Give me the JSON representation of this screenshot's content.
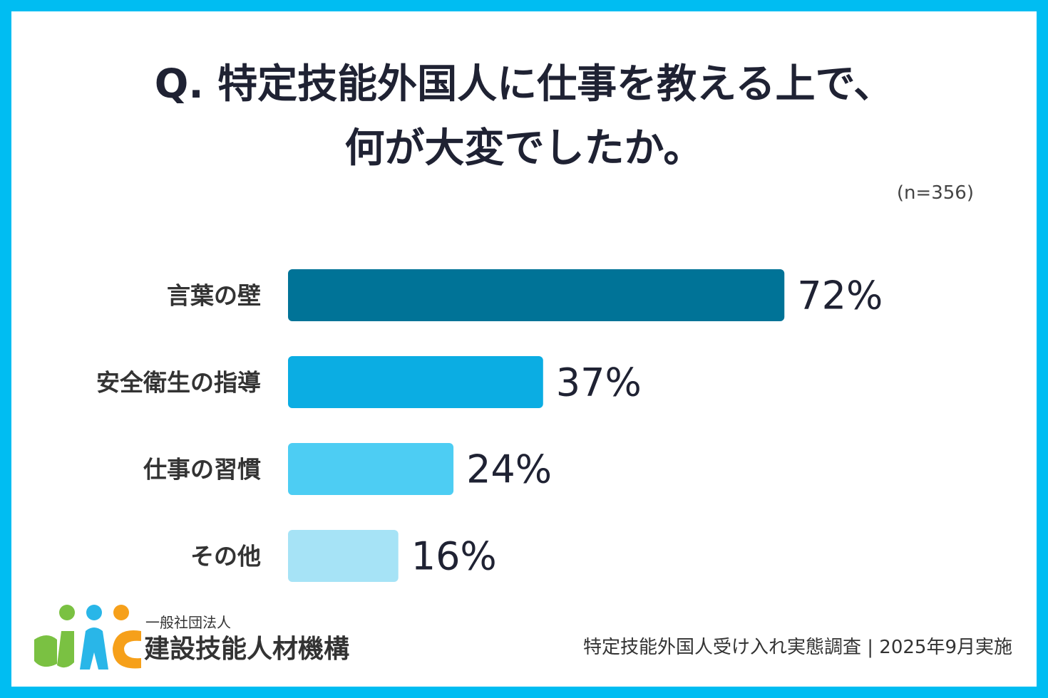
{
  "title_line1": "Q. 特定技能外国人に仕事を教える上で、",
  "title_line2": "何が大変でしたか。",
  "sample_size": "(n=356)",
  "org": {
    "type_label": "一般社団法人",
    "name": "建設技能人材機構"
  },
  "source": "特定技能外国人受け入れ実態調査 | 2025年9月実施",
  "colors": {
    "frame": "#00bdf2",
    "bar_1": "#007397",
    "bar_2": "#0bade3",
    "bar_3": "#4dcdf3",
    "bar_4": "#a6e3f6",
    "logo_green": "#7ac142",
    "logo_blue": "#29b6e8",
    "logo_orange": "#f6a01a"
  },
  "chart_data": {
    "type": "bar",
    "orientation": "horizontal",
    "categories": [
      "言葉の壁",
      "安全衛生の指導",
      "仕事の習慣",
      "その他"
    ],
    "values": [
      72,
      37,
      24,
      16
    ],
    "value_labels": [
      "72%",
      "37%",
      "24%",
      "16%"
    ],
    "unit": "%",
    "xlim": [
      0,
      100
    ],
    "grid": false,
    "legend": "none"
  }
}
